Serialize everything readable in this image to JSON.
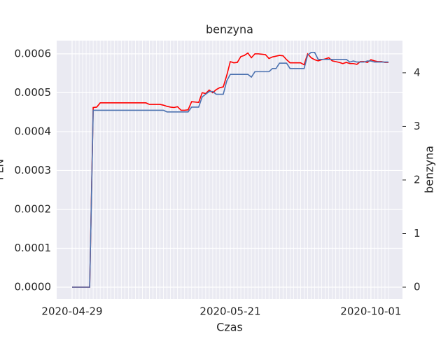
{
  "chart_data": {
    "type": "line",
    "title": "benzyna",
    "xlabel": "Czas",
    "ylabel": "PLN",
    "y2label": "benzyna",
    "categories": [
      "2020-04-29",
      null,
      null,
      null,
      null,
      null,
      null,
      null,
      null,
      null,
      null,
      null,
      null,
      null,
      null,
      null,
      null,
      null,
      null,
      null,
      null,
      null,
      null,
      null,
      null,
      null,
      null,
      null,
      null,
      null,
      null,
      null,
      null,
      null,
      null,
      null,
      null,
      null,
      null,
      null,
      null,
      null,
      null,
      null,
      null,
      "2020-05-21",
      null,
      null,
      null,
      null,
      null,
      null,
      null,
      null,
      null,
      null,
      null,
      null,
      null,
      null,
      null,
      null,
      null,
      null,
      null,
      null,
      null,
      null,
      null,
      null,
      null,
      null,
      null,
      null,
      null,
      null,
      null,
      null,
      null,
      null,
      null,
      null,
      null,
      null,
      null,
      "2020-10-01",
      null,
      null,
      null,
      null,
      null
    ],
    "series": [
      {
        "name": "PLN",
        "color": "#ff0000",
        "axis": "y",
        "values": [
          0,
          0,
          0,
          0,
          0,
          0,
          0.000462,
          0.000463,
          0.000474,
          0.000474,
          0.000474,
          0.000474,
          0.000474,
          0.000474,
          0.000474,
          0.000474,
          0.000474,
          0.000474,
          0.000474,
          0.000474,
          0.000474,
          0.000474,
          0.00047,
          0.00047,
          0.00047,
          0.00047,
          0.000468,
          0.000465,
          0.000463,
          0.000462,
          0.000464,
          0.000455,
          0.000455,
          0.000456,
          0.000477,
          0.000476,
          0.000475,
          0.0005,
          0.000498,
          0.000507,
          0.0005,
          0.000508,
          0.000513,
          0.000515,
          0.000545,
          0.00058,
          0.000577,
          0.000578,
          0.000593,
          0.000596,
          0.000602,
          0.00059,
          0.0006,
          0.0006,
          0.000599,
          0.000598,
          0.000588,
          0.000592,
          0.000594,
          0.000596,
          0.000595,
          0.000585,
          0.000577,
          0.000577,
          0.000577,
          0.000577,
          0.000572,
          0.0006,
          0.00059,
          0.000585,
          0.000582,
          0.000585,
          0.000587,
          0.00059,
          0.000582,
          0.00058,
          0.000578,
          0.000575,
          0.000578,
          0.000575,
          0.000575,
          0.000573,
          0.00058,
          0.00058,
          0.000578,
          0.000585,
          0.000582,
          0.00058,
          0.00058,
          0.000578,
          0.000578
        ]
      },
      {
        "name": "benzyna",
        "color": "#4c72b0",
        "axis": "y2",
        "values": [
          0,
          0,
          0,
          0,
          0,
          0,
          3.3,
          3.3,
          3.3,
          3.3,
          3.3,
          3.3,
          3.3,
          3.3,
          3.3,
          3.3,
          3.3,
          3.3,
          3.3,
          3.3,
          3.3,
          3.3,
          3.3,
          3.3,
          3.3,
          3.3,
          3.3,
          3.27,
          3.27,
          3.27,
          3.27,
          3.27,
          3.27,
          3.27,
          3.36,
          3.36,
          3.36,
          3.55,
          3.6,
          3.65,
          3.65,
          3.6,
          3.6,
          3.6,
          3.85,
          3.97,
          3.97,
          3.97,
          3.97,
          3.97,
          3.97,
          3.92,
          4.02,
          4.02,
          4.02,
          4.02,
          4.02,
          4.08,
          4.08,
          4.18,
          4.18,
          4.18,
          4.08,
          4.08,
          4.08,
          4.08,
          4.08,
          4.33,
          4.38,
          4.38,
          4.25,
          4.25,
          4.25,
          4.25,
          4.25,
          4.25,
          4.25,
          4.25,
          4.25,
          4.2,
          4.22,
          4.2,
          4.2,
          4.2,
          4.22,
          4.22,
          4.2,
          4.2,
          4.2,
          4.2,
          4.2
        ]
      }
    ],
    "ylim": [
      -3.06e-05,
      0.000634
    ],
    "yticks": [
      {
        "value": 0,
        "label": "0.0000"
      },
      0.0001,
      0.0002,
      0.0003,
      0.0004,
      0.0005,
      0.0006
    ],
    "y2lim": [
      -0.222,
      4.6
    ],
    "y2ticks": [
      0,
      1,
      2,
      3,
      4
    ],
    "grid": true
  }
}
